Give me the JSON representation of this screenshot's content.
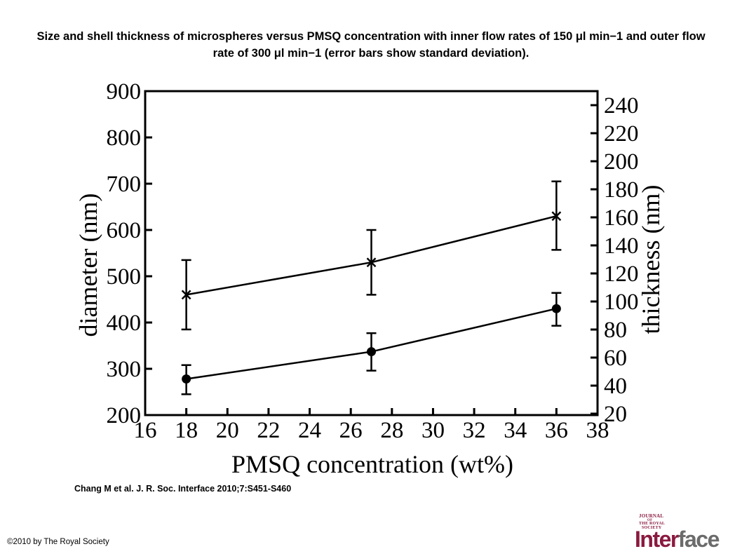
{
  "title": "Size and shell thickness of microspheres versus PMSQ concentration with inner flow rates of 150 μl min−1 and outer flow rate of 300 μl min−1 (error bars show standard deviation).",
  "citation": "Chang M et al. J. R. Soc. Interface 2010;7:S451-S460",
  "copyright": "©2010 by The Royal Society",
  "logo": {
    "line1": "JOURNAL",
    "line2": "OF",
    "line3": "THE ROYAL",
    "line4": "SOCIETY",
    "word_first": "Inter",
    "word_rest": "face"
  },
  "chart_data": {
    "type": "line",
    "xlabel": "PMSQ concentration (wt%)",
    "ylabel_left": "diameter (nm)",
    "ylabel_right": "thickness (nm)",
    "xlim": [
      16,
      38
    ],
    "ylim_left": [
      200,
      900
    ],
    "ylim_right": [
      20,
      250
    ],
    "x_ticks": [
      16,
      18,
      20,
      22,
      24,
      26,
      28,
      30,
      32,
      34,
      36,
      38
    ],
    "y_left_ticks": [
      200,
      300,
      400,
      500,
      600,
      700,
      800,
      900
    ],
    "y_right_ticks": [
      20,
      40,
      60,
      80,
      100,
      120,
      140,
      160,
      180,
      200,
      220,
      240
    ],
    "grid": false,
    "x": [
      18,
      27,
      36
    ],
    "series": [
      {
        "axis": "left",
        "marker": "x",
        "values": [
          460,
          530,
          630
        ],
        "error_low": [
          385,
          460,
          557
        ],
        "error_high": [
          535,
          600,
          705
        ]
      },
      {
        "axis": "left",
        "marker": "circle",
        "values": [
          278,
          337,
          430
        ],
        "error_low": [
          245,
          296,
          393
        ],
        "error_high": [
          308,
          377,
          464
        ]
      }
    ]
  }
}
